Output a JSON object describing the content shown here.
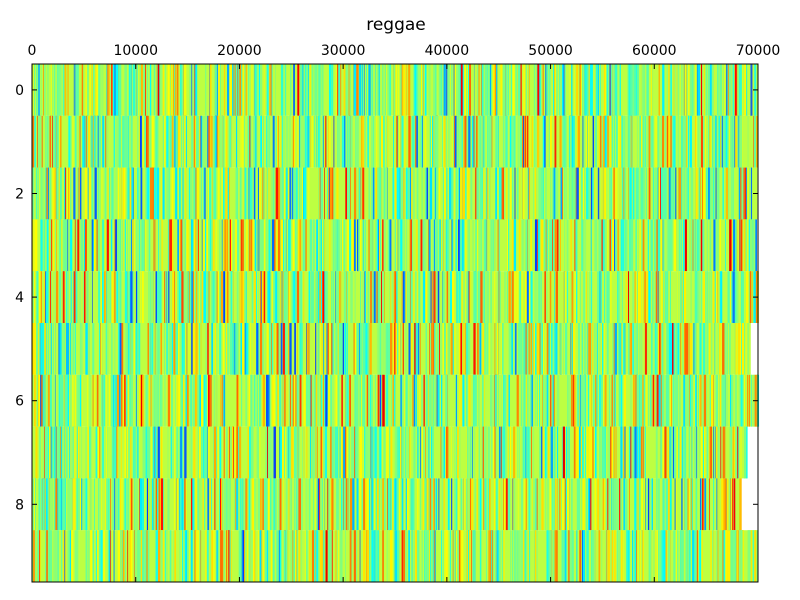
{
  "chart_data": {
    "type": "heatmap",
    "title": "reggae",
    "xlabel": "",
    "ylabel": "",
    "colormap": "jet",
    "x_ticks": [
      0,
      10000,
      20000,
      30000,
      40000,
      50000,
      60000,
      70000
    ],
    "x_tick_labels": [
      "0",
      "10000",
      "20000",
      "30000",
      "40000",
      "50000",
      "60000",
      "70000"
    ],
    "x_ticks_position": "top",
    "y_ticks": [
      0,
      2,
      4,
      6,
      8
    ],
    "y_tick_labels": [
      "0",
      "2",
      "4",
      "6",
      "8"
    ],
    "xlim": [
      0,
      70000
    ],
    "ylim": [
      9.5,
      -0.5
    ],
    "rows": 10,
    "columns_approx": 70000,
    "grid": false,
    "colorbar": false,
    "dominant_colors": [
      "#5dff9a",
      "#7bff7b",
      "#2affc8",
      "#00d8ff",
      "#9cff5a",
      "#ffee00",
      "#0040ff",
      "#ff8000"
    ],
    "description_values": "Each row is a signal of ~70000 samples; values are mostly mid-range (green) with scattered low (blue) and high (yellow/orange) spikes."
  }
}
